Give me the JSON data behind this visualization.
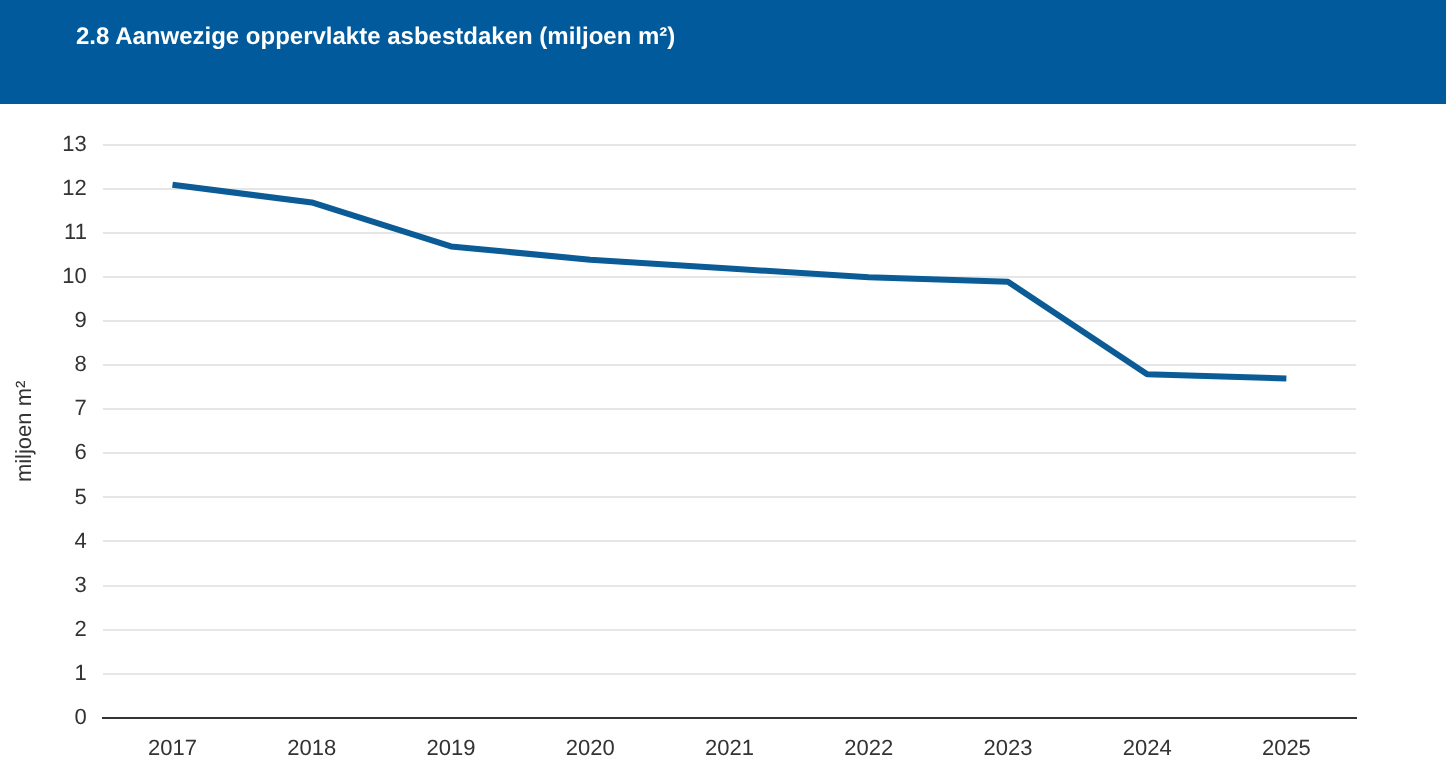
{
  "chart_data": {
    "type": "line",
    "title": "2.8 Aanwezige oppervlakte asbestdaken (miljoen m²)",
    "ylabel": "miljoen m²",
    "categories": [
      "2017",
      "2018",
      "2019",
      "2020",
      "2021",
      "2022",
      "2023",
      "2024",
      "2025"
    ],
    "series": [
      {
        "color": "#0b5c96",
        "values": [
          12.1,
          11.7,
          10.7,
          10.4,
          10.2,
          10.0,
          9.9,
          7.8,
          7.7
        ]
      }
    ],
    "ylim": [
      0,
      13
    ],
    "yticks": [
      0,
      1,
      2,
      3,
      4,
      5,
      6,
      7,
      8,
      9,
      10,
      11,
      12,
      13
    ],
    "grid": "y",
    "legend": false,
    "marker": "none",
    "line_style": "solid"
  }
}
